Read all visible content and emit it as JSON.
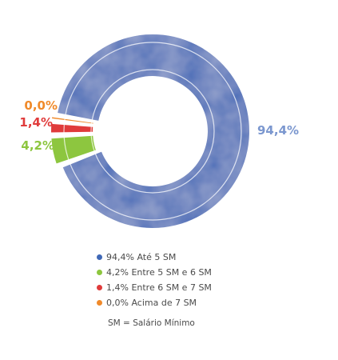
{
  "chart_data": {
    "type": "pie",
    "style": "donut",
    "slices": [
      {
        "name": "Até 5 SM",
        "value": 94.4,
        "value_label": "94,4%",
        "color": "#3f68b6",
        "label_color": "#7b97cf"
      },
      {
        "name": "Entre 5 SM e 6 SM",
        "value": 4.2,
        "value_label": "4,2%",
        "color": "#8dc63f",
        "label_color": "#8dc63f"
      },
      {
        "name": "Entre 6 SM e 7 SM",
        "value": 1.4,
        "value_label": "1,4%",
        "color": "#e03b3b",
        "label_color": "#e03b3b"
      },
      {
        "name": "Acima de 7 SM",
        "value": 0.0,
        "value_label": "0,0%",
        "color": "#f08a2a",
        "label_color": "#f08a2a"
      }
    ],
    "legend": [
      {
        "text": "94,4% Até 5 SM",
        "color": "#3f68b6"
      },
      {
        "text": "4,2% Entre 5 SM e 6 SM",
        "color": "#8dc63f"
      },
      {
        "text": "1,4% Entre 6 SM e 7 SM",
        "color": "#e03b3b"
      },
      {
        "text": "0,0% Acima de 7 SM",
        "color": "#f08a2a"
      }
    ],
    "legend_position": "bottom",
    "footnote": "SM = Salário Mínimo"
  }
}
